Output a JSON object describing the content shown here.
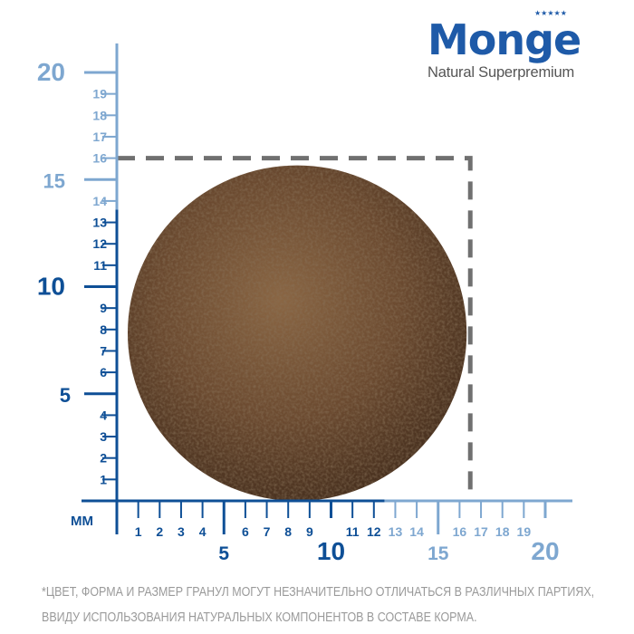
{
  "brand": {
    "name": "Monge",
    "tagline": "Natural Superpremium",
    "stars": "★★★★★",
    "color": "#1e5aa8"
  },
  "ruler": {
    "unit_label": "MM",
    "range": [
      0,
      20
    ],
    "dark_color": "#0e4f96",
    "light_color": "#7ea7d0",
    "dark_limit_x": 12.5,
    "dark_limit_y": 13.6,
    "x_ticks": [
      "1",
      "2",
      "3",
      "4",
      "5",
      "6",
      "7",
      "8",
      "9",
      "10",
      "11",
      "12",
      "13",
      "14",
      "15",
      "16",
      "17",
      "18",
      "19",
      "20"
    ],
    "y_ticks": [
      "1",
      "2",
      "3",
      "4",
      "5",
      "6",
      "7",
      "8",
      "9",
      "10",
      "11",
      "12",
      "13",
      "14",
      "15",
      "16",
      "17",
      "18",
      "19",
      "20"
    ],
    "major_every": 5
  },
  "kibble": {
    "width_mm": 16.5,
    "height_mm": 16,
    "shape": "round",
    "color": "#6b4a30"
  },
  "dashed_box": {
    "width_mm": 16.5,
    "height_mm": 16,
    "color": "#707070"
  },
  "footer": {
    "line1": "*ЦВЕТ, ФОРМА И РАЗМЕР ГРАНУЛ МОГУТ НЕЗНАЧИТЕЛЬНО ОТЛИЧАТЬСЯ В РАЗЛИЧНЫХ ПАРТИЯХ,",
    "line2": "ВВИДУ ИСПОЛЬЗОВАНИЯ НАТУРАЛЬНЫХ КОМПОНЕНТОВ В СОСТАВЕ КОРМА."
  }
}
